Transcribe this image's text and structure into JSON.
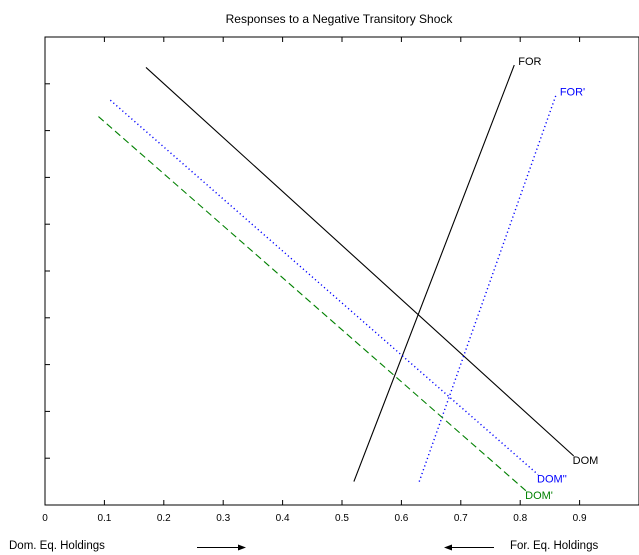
{
  "chart_data": {
    "type": "line",
    "title": "Responses to a Negative Transitory Shock",
    "xlabel": "",
    "ylabel": "",
    "xlim": [
      0,
      1
    ],
    "x_ticks": [
      0,
      0.1,
      0.2,
      0.3,
      0.4,
      0.5,
      0.6,
      0.7,
      0.8,
      0.9
    ],
    "x_tick_labels": [
      "0",
      "0.1",
      "0.2",
      "0.3",
      "0.4",
      "0.5",
      "0.6",
      "0.7",
      "0.8",
      "0.9"
    ],
    "y_tick_count": 9,
    "grid": false,
    "series": [
      {
        "name": "DOM",
        "color": "#000000",
        "style": "solid",
        "x": [
          0.17,
          0.89
        ],
        "y": [
          0.935,
          0.105
        ]
      },
      {
        "name": "FOR",
        "color": "#000000",
        "style": "solid",
        "x": [
          0.52,
          0.79
        ],
        "y": [
          0.05,
          0.94
        ]
      },
      {
        "name": "DOM''",
        "color": "#0000ff",
        "style": "dotted",
        "x": [
          0.11,
          0.83
        ],
        "y": [
          0.865,
          0.065
        ]
      },
      {
        "name": "FOR'",
        "color": "#0000ff",
        "style": "dotted",
        "x": [
          0.63,
          0.86
        ],
        "y": [
          0.05,
          0.875
        ]
      },
      {
        "name": "DOM'",
        "color": "#008000",
        "style": "dashed",
        "x": [
          0.09,
          0.81
        ],
        "y": [
          0.83,
          0.03
        ]
      }
    ]
  },
  "annotations": {
    "left_note": "Dom. Eq. Holdings",
    "right_note": "For. Eq. Holdings",
    "arrow_icons": [
      "right-arrow-icon",
      "left-arrow-icon"
    ]
  }
}
